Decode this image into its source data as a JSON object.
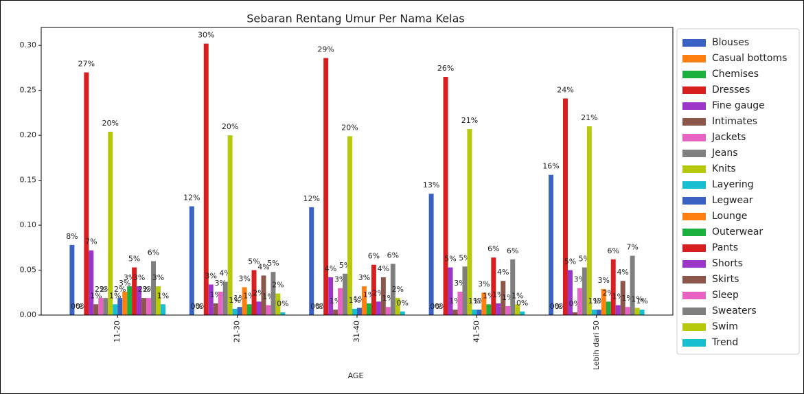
{
  "chart_data": {
    "type": "bar",
    "title": "Sebaran Rentang Umur Per Nama Kelas",
    "xlabel": "AGE",
    "categories": [
      "11-20",
      "21-30",
      "31-40",
      "41-50",
      "Lebih dari 50"
    ],
    "ylim": [
      0,
      0.32
    ],
    "yticks": [
      {
        "value": 0,
        "label": "0.00"
      },
      {
        "value": 0.05,
        "label": "0.05"
      },
      {
        "value": 0.1,
        "label": "0.10"
      },
      {
        "value": 0.15,
        "label": "0.15"
      },
      {
        "value": 0.2,
        "label": "0.20"
      },
      {
        "value": 0.25,
        "label": "0.25"
      },
      {
        "value": 0.3,
        "label": "0.30"
      }
    ],
    "legend": "right",
    "series": [
      {
        "name": "Blouses",
        "color": "#3a62c2",
        "values": [
          0.078,
          0.121,
          0.12,
          0.135,
          0.156
        ],
        "value_labels": [
          "8%",
          "12%",
          "12%",
          "13%",
          "16%"
        ]
      },
      {
        "name": "Casual bottoms",
        "color": "#ff8010",
        "values": [
          0,
          0,
          0,
          0,
          0
        ],
        "value_labels": [
          "0%",
          "0%",
          "0%",
          "0%",
          "0%"
        ]
      },
      {
        "name": "Chemises",
        "color": "#1cb040",
        "values": [
          0,
          0,
          0,
          0,
          0
        ],
        "value_labels": [
          "0%",
          "0%",
          "0%",
          "0%",
          "0%"
        ]
      },
      {
        "name": "Dresses",
        "color": "#d81f1f",
        "values": [
          0.27,
          0.302,
          0.286,
          0.265,
          0.241
        ],
        "value_labels": [
          "27%",
          "30%",
          "29%",
          "26%",
          "24%"
        ]
      },
      {
        "name": "Fine gauge",
        "color": "#9b36c8",
        "values": [
          0.072,
          0.034,
          0.042,
          0.053,
          0.05
        ],
        "value_labels": [
          "7%",
          "3%",
          "4%",
          "5%",
          "5%"
        ]
      },
      {
        "name": "Intimates",
        "color": "#8c564b",
        "values": [
          0.012,
          0.013,
          0.006,
          0.006,
          0.003
        ],
        "value_labels": [
          "1%",
          "1%",
          "1%",
          "1%",
          "0%"
        ]
      },
      {
        "name": "Jackets",
        "color": "#e862c4",
        "values": [
          0.019,
          0.026,
          0.03,
          0.026,
          0.03
        ],
        "value_labels": [
          "2%",
          "3%",
          "3%",
          "3%",
          "3%"
        ]
      },
      {
        "name": "Jeans",
        "color": "#7f7f7f",
        "values": [
          0.019,
          0.037,
          0.046,
          0.054,
          0.053
        ],
        "value_labels": [
          "2%",
          "4%",
          "5%",
          "5%",
          "5%"
        ]
      },
      {
        "name": "Knits",
        "color": "#b6c90a",
        "values": [
          0.204,
          0.2,
          0.199,
          0.207,
          0.21
        ],
        "value_labels": [
          "20%",
          "20%",
          "20%",
          "21%",
          "21%"
        ]
      },
      {
        "name": "Layering",
        "color": "#17becf",
        "values": [
          0.012,
          0.007,
          0.007,
          0.006,
          0.006
        ],
        "value_labels": [
          "1%",
          "1%",
          "1%",
          "1%",
          "1%"
        ]
      },
      {
        "name": "Legwear",
        "color": "#3a62c2",
        "values": [
          0.019,
          0.009,
          0.008,
          0.006,
          0.006
        ],
        "value_labels": [
          "2%",
          "1%",
          "1%",
          "1%",
          "1%"
        ]
      },
      {
        "name": "Lounge",
        "color": "#ff8010",
        "values": [
          0.026,
          0.031,
          0.032,
          0.025,
          0.029
        ],
        "value_labels": [
          "3%",
          "3%",
          "3%",
          "3%",
          "3%"
        ]
      },
      {
        "name": "Outerwear",
        "color": "#1cb040",
        "values": [
          0.032,
          0.012,
          0.013,
          0.012,
          0.015
        ],
        "value_labels": [
          "3%",
          "1%",
          "1%",
          "1%",
          "2%"
        ]
      },
      {
        "name": "Pants",
        "color": "#d81f1f",
        "values": [
          0.053,
          0.05,
          0.056,
          0.064,
          0.062
        ],
        "value_labels": [
          "5%",
          "5%",
          "6%",
          "6%",
          "6%"
        ]
      },
      {
        "name": "Shorts",
        "color": "#9b36c8",
        "values": [
          0.032,
          0.015,
          0.015,
          0.013,
          0.011
        ],
        "value_labels": [
          "3%",
          "2%",
          "2%",
          "1%",
          "1%"
        ]
      },
      {
        "name": "Skirts",
        "color": "#8c564b",
        "values": [
          0.019,
          0.044,
          0.042,
          0.038,
          0.038
        ],
        "value_labels": [
          "2%",
          "4%",
          "4%",
          "4%",
          "4%"
        ]
      },
      {
        "name": "Sleep",
        "color": "#e862c4",
        "values": [
          0.019,
          0.011,
          0.009,
          0.01,
          0.009
        ],
        "value_labels": [
          "2%",
          "1%",
          "1%",
          "1%",
          "1%"
        ]
      },
      {
        "name": "Sweaters",
        "color": "#7f7f7f",
        "values": [
          0.06,
          0.048,
          0.057,
          0.062,
          0.066
        ],
        "value_labels": [
          "6%",
          "5%",
          "6%",
          "6%",
          "7%"
        ]
      },
      {
        "name": "Swim",
        "color": "#b6c90a",
        "values": [
          0.032,
          0.024,
          0.019,
          0.012,
          0.008
        ],
        "value_labels": [
          "3%",
          "2%",
          "2%",
          "1%",
          "1%"
        ]
      },
      {
        "name": "Trend",
        "color": "#17becf",
        "values": [
          0.012,
          0.003,
          0.004,
          0.004,
          0.006
        ],
        "value_labels": [
          "1%",
          "0%",
          "0%",
          "0%",
          "1%"
        ]
      }
    ]
  }
}
